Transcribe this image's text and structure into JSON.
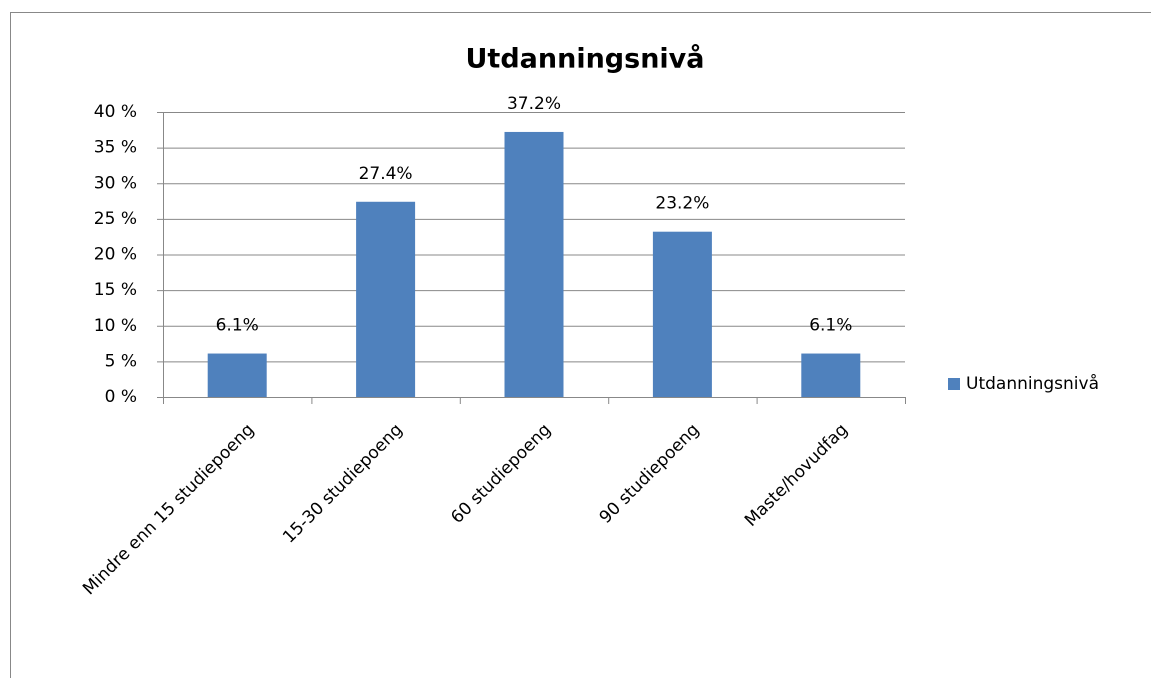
{
  "chart_data": {
    "type": "bar",
    "title": "Utdanningsnivå",
    "categories": [
      "Mindre enn 15 studiepoeng",
      "15-30 studiepoeng",
      "60 studiepoeng",
      "90 studiepoeng",
      "Maste/hovudfag"
    ],
    "series": [
      {
        "name": "Utdanningsnivå",
        "color": "#4f81bd",
        "values": [
          6.1,
          27.4,
          37.2,
          23.2,
          6.1
        ],
        "value_labels": [
          "6.1%",
          "27.4%",
          "37.2%",
          "23.2%",
          "6.1%"
        ]
      }
    ],
    "ylim": [
      0,
      40
    ],
    "yticks": [
      {
        "value": 0,
        "label": "0 %"
      },
      {
        "value": 5,
        "label": "5 %"
      },
      {
        "value": 10,
        "label": "10 %"
      },
      {
        "value": 15,
        "label": "15 %"
      },
      {
        "value": 20,
        "label": "20 %"
      },
      {
        "value": 25,
        "label": "25 %"
      },
      {
        "value": 30,
        "label": "30 %"
      },
      {
        "value": 35,
        "label": "35 %"
      },
      {
        "value": 40,
        "label": "40 %"
      }
    ],
    "grid": true,
    "legend": "right"
  }
}
